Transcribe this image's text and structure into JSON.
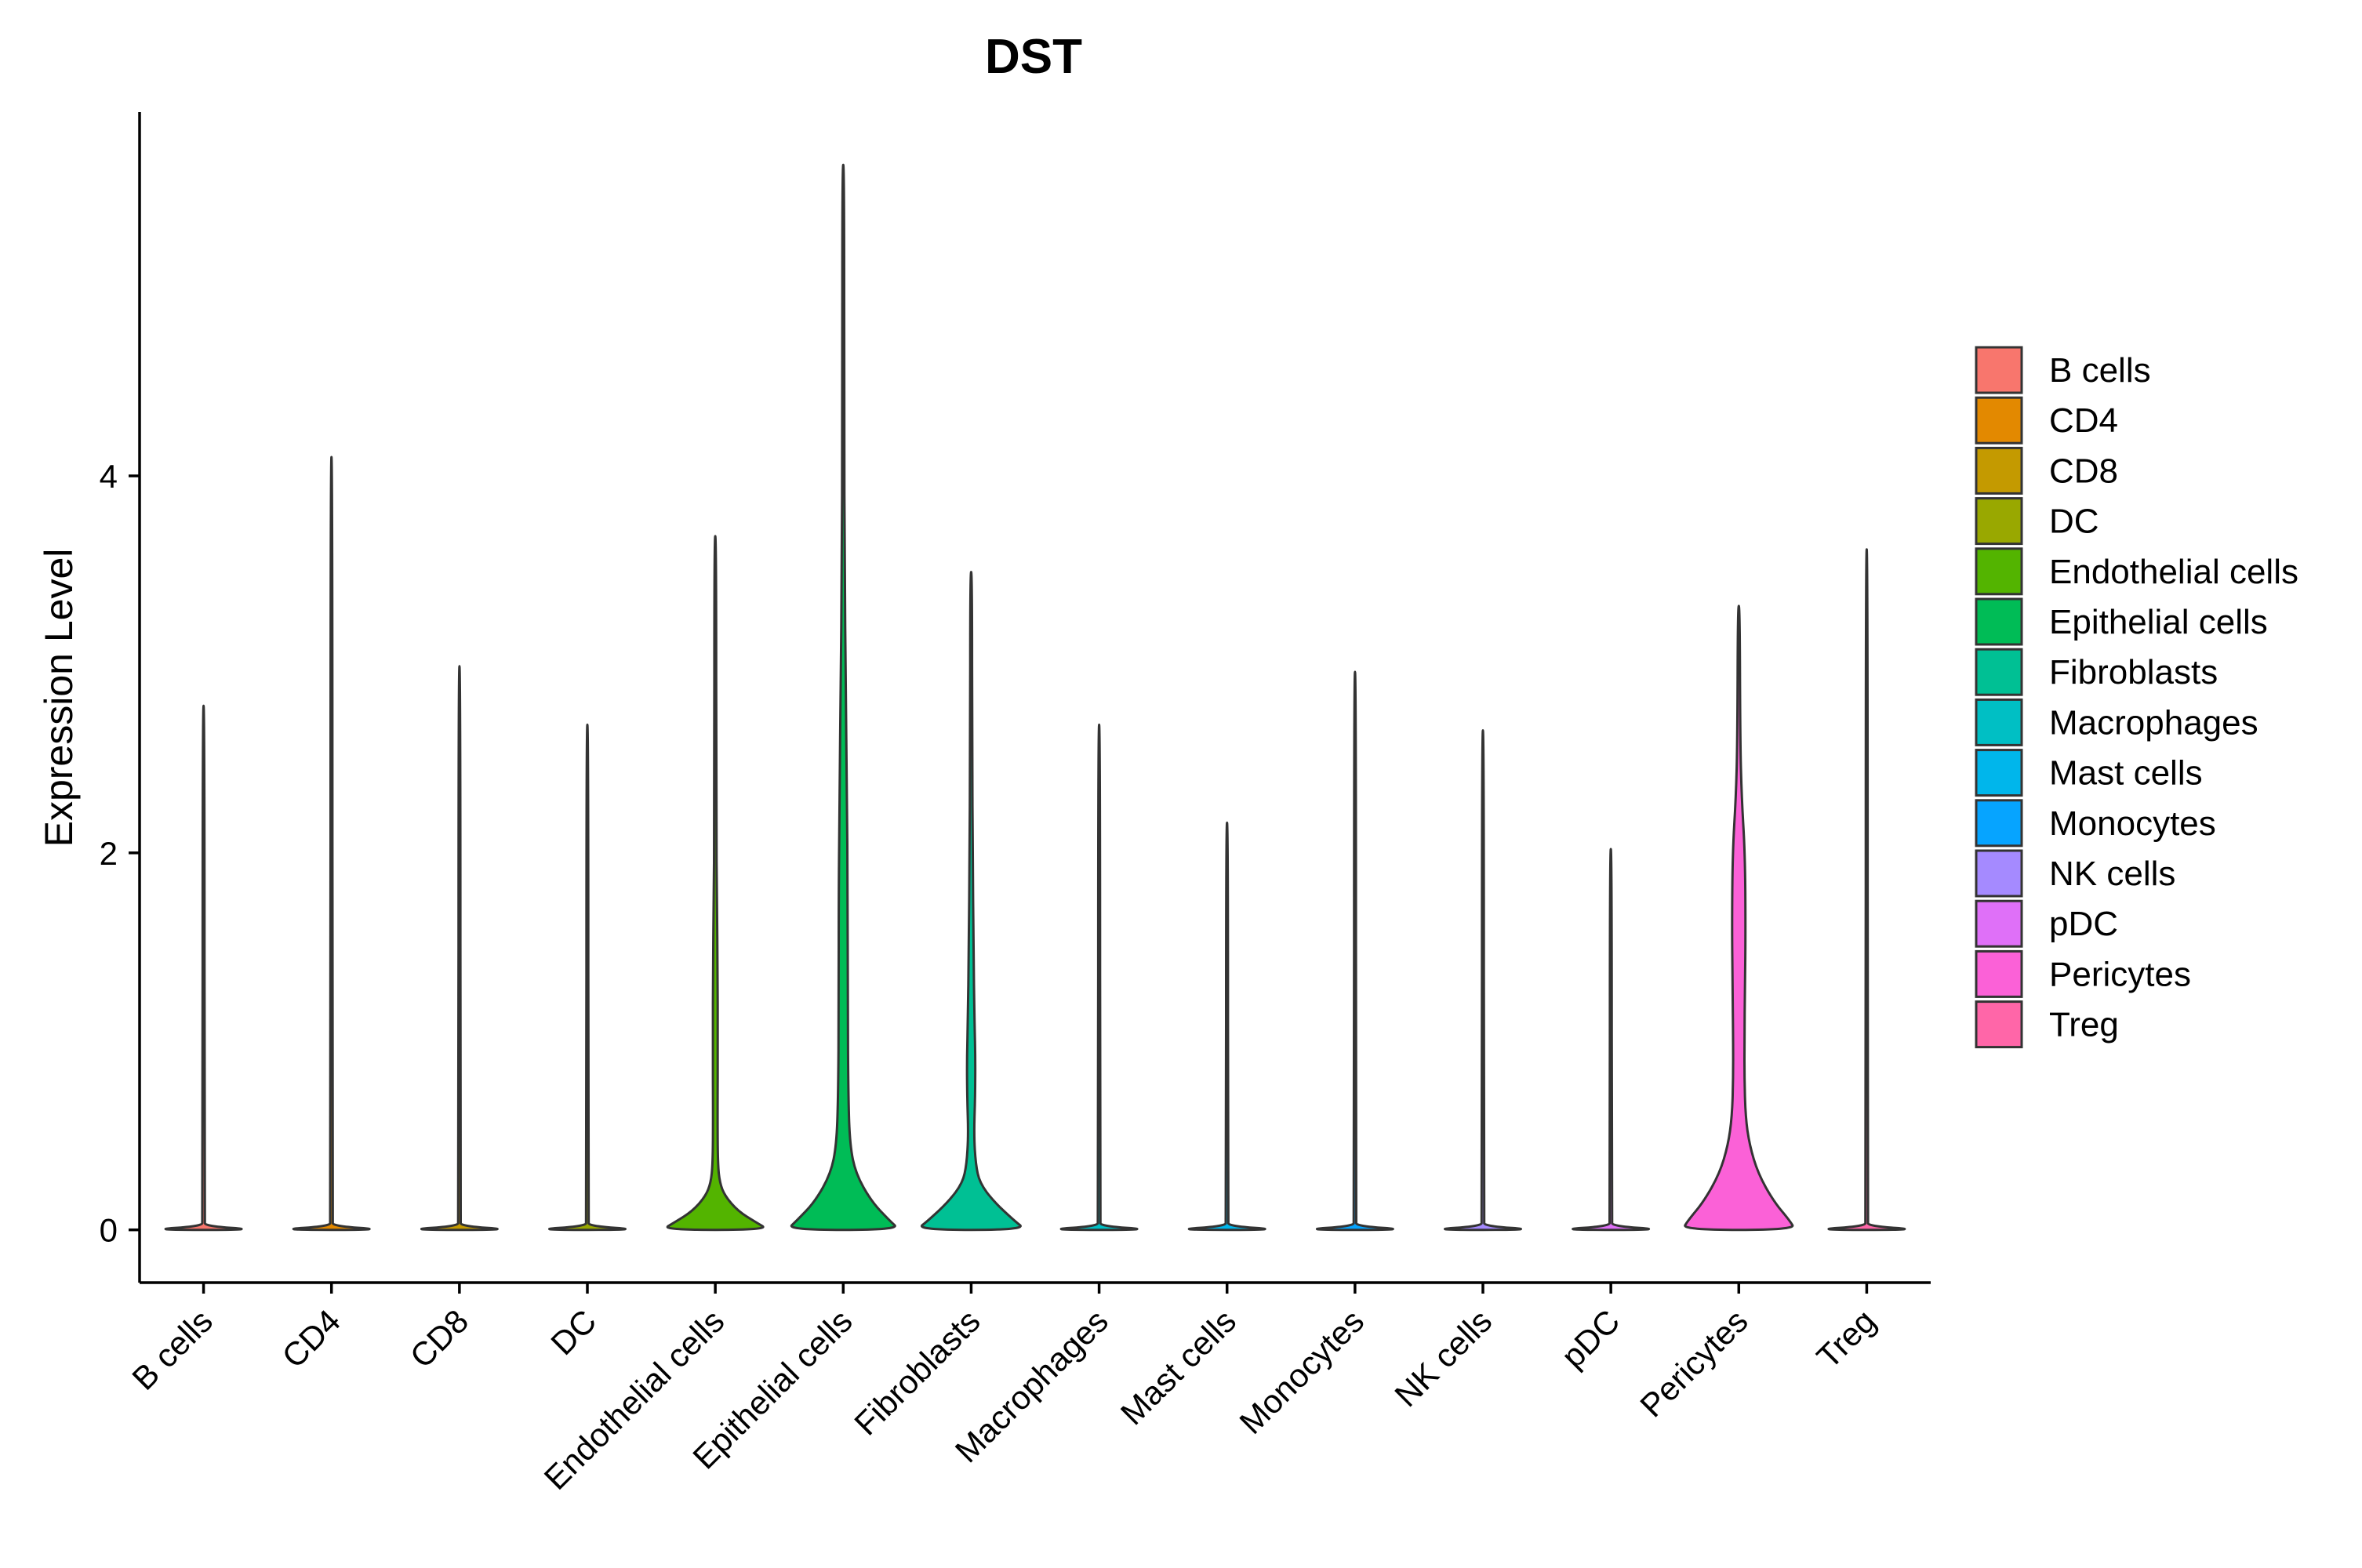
{
  "chart_data": {
    "type": "violin",
    "title": "DST",
    "xlabel": "",
    "ylabel": "Expression Level",
    "ylim": [
      -0.28,
      5.93
    ],
    "yticks": [
      0,
      2,
      4
    ],
    "grid": false,
    "legend_position": "right",
    "categories": [
      "B cells",
      "CD4",
      "CD8",
      "DC",
      "Endothelial cells",
      "Epithelial cells",
      "Fibroblasts",
      "Macrophages",
      "Mast cells",
      "Monocytes",
      "NK cells",
      "pDC",
      "Pericytes",
      "Treg"
    ],
    "colors": [
      "#F8766D",
      "#E38900",
      "#C49A00",
      "#99A800",
      "#53B400",
      "#00BC56",
      "#00C094",
      "#00BFC4",
      "#00B6EB",
      "#06A4FF",
      "#A58AFF",
      "#DF70F8",
      "#FB61D7",
      "#FF66A8"
    ],
    "max_values": [
      2.78,
      4.1,
      2.99,
      2.68,
      3.68,
      5.65,
      3.49,
      2.68,
      2.16,
      2.96,
      2.65,
      2.02,
      3.31,
      3.61
    ],
    "violin_profiles": [
      {
        "name": "B cells",
        "y": [
          0,
          0.02,
          0.05,
          2.78
        ],
        "w": [
          1.0,
          0.03,
          0.01,
          0.005
        ]
      },
      {
        "name": "CD4",
        "y": [
          0,
          0.02,
          0.05,
          4.1
        ],
        "w": [
          1.0,
          0.03,
          0.01,
          0.005
        ]
      },
      {
        "name": "CD8",
        "y": [
          0,
          0.02,
          0.05,
          2.99
        ],
        "w": [
          1.0,
          0.03,
          0.01,
          0.005
        ]
      },
      {
        "name": "DC",
        "y": [
          0,
          0.02,
          0.05,
          2.68
        ],
        "w": [
          1.0,
          0.03,
          0.01,
          0.005
        ]
      },
      {
        "name": "Endothelial cells",
        "y": [
          0,
          0.04,
          0.1,
          0.18,
          0.25,
          0.35,
          0.6,
          1.0,
          1.4,
          1.7,
          2.2,
          3.68
        ],
        "w": [
          0.95,
          0.72,
          0.4,
          0.17,
          0.08,
          0.045,
          0.04,
          0.045,
          0.04,
          0.03,
          0.015,
          0.005
        ]
      },
      {
        "name": "Epithelial cells",
        "y": [
          0,
          0.05,
          0.15,
          0.3,
          0.45,
          0.7,
          1.2,
          1.8,
          2.3,
          2.9,
          3.5,
          4.3,
          5.65
        ],
        "w": [
          1.0,
          0.82,
          0.5,
          0.22,
          0.12,
          0.09,
          0.08,
          0.08,
          0.065,
          0.045,
          0.025,
          0.012,
          0.005
        ]
      },
      {
        "name": "Fibroblasts",
        "y": [
          0,
          0.05,
          0.15,
          0.25,
          0.35,
          0.5,
          0.7,
          0.9,
          1.1,
          1.5,
          2.0,
          2.5,
          3.49
        ],
        "w": [
          0.97,
          0.76,
          0.4,
          0.15,
          0.08,
          0.05,
          0.07,
          0.075,
          0.06,
          0.04,
          0.03,
          0.015,
          0.005
        ]
      },
      {
        "name": "Macrophages",
        "y": [
          0,
          0.02,
          0.05,
          2.68
        ],
        "w": [
          1.0,
          0.03,
          0.01,
          0.005
        ]
      },
      {
        "name": "Mast cells",
        "y": [
          0,
          0.02,
          0.05,
          2.16
        ],
        "w": [
          1.0,
          0.03,
          0.01,
          0.005
        ]
      },
      {
        "name": "Monocytes",
        "y": [
          0,
          0.02,
          0.05,
          2.96
        ],
        "w": [
          1.0,
          0.03,
          0.01,
          0.005
        ]
      },
      {
        "name": "NK cells",
        "y": [
          0,
          0.02,
          0.05,
          2.65
        ],
        "w": [
          1.0,
          0.03,
          0.01,
          0.005
        ]
      },
      {
        "name": "pDC",
        "y": [
          0,
          0.02,
          0.05,
          2.02
        ],
        "w": [
          1.0,
          0.03,
          0.01,
          0.005
        ]
      },
      {
        "name": "Pericytes",
        "y": [
          0,
          0.05,
          0.15,
          0.3,
          0.45,
          0.6,
          0.8,
          1.0,
          1.3,
          1.6,
          2.0,
          2.3,
          2.6,
          3.31
        ],
        "w": [
          1.0,
          0.9,
          0.62,
          0.34,
          0.19,
          0.12,
          0.1,
          0.1,
          0.11,
          0.12,
          0.11,
          0.05,
          0.025,
          0.005
        ]
      },
      {
        "name": "Treg",
        "y": [
          0,
          0.02,
          0.05,
          3.61
        ],
        "w": [
          1.0,
          0.03,
          0.01,
          0.005
        ]
      }
    ]
  }
}
